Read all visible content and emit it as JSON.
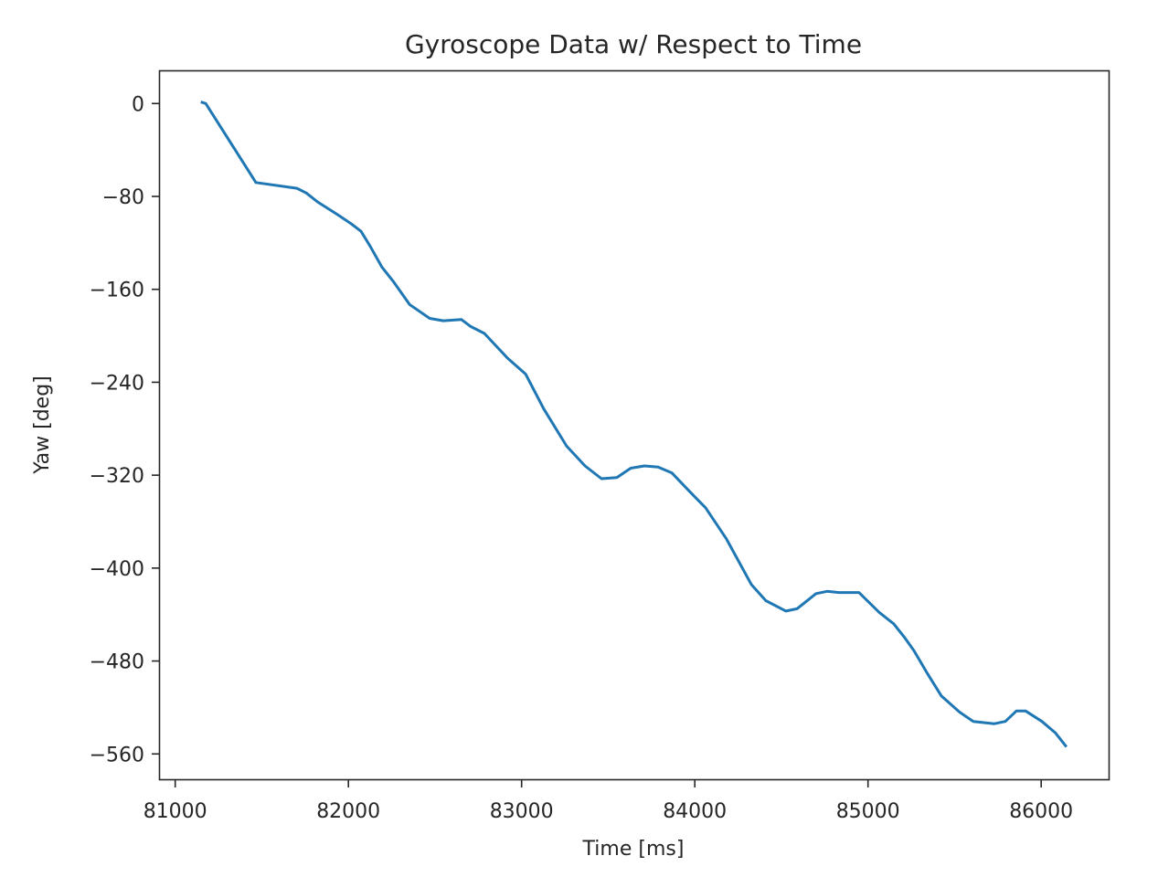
{
  "chart_data": {
    "type": "line",
    "title": "Gyroscope Data w/ Respect to Time",
    "xlabel": "Time [ms]",
    "ylabel": "Yaw [deg]",
    "xlim": [
      80950,
      86390
    ],
    "ylim": [
      -591,
      28
    ],
    "xticks": [
      81000,
      82000,
      83000,
      84000,
      85000,
      86000
    ],
    "yticks": [
      0,
      -80,
      -160,
      -240,
      -320,
      -400,
      -480,
      -560
    ],
    "ytick_labels": [
      "0",
      "−80",
      "−160",
      "−240",
      "−320",
      "−400",
      "−480",
      "−560"
    ],
    "grid": false,
    "legend": null,
    "series": [
      {
        "name": "Yaw",
        "color": "#1f77b4",
        "x": [
          81155,
          81176,
          81466,
          81703,
          81756,
          81825,
          81941,
          82020,
          82073,
          82126,
          82194,
          82258,
          82353,
          82469,
          82548,
          82653,
          82706,
          82785,
          82917,
          83023,
          83128,
          83260,
          83366,
          83461,
          83550,
          83630,
          83709,
          83788,
          83867,
          83957,
          84009,
          84062,
          84183,
          84326,
          84410,
          84526,
          84590,
          84700,
          84764,
          84832,
          84948,
          85064,
          85149,
          85212,
          85265,
          85344,
          85423,
          85529,
          85608,
          85730,
          85793,
          85857,
          85909,
          86004,
          86083,
          86141
        ],
        "y": [
          1,
          0,
          -68,
          -73,
          -77,
          -85,
          -96,
          -104,
          -110,
          -123,
          -141,
          -153,
          -173,
          -185,
          -187,
          -186,
          -192,
          -198,
          -219,
          -233,
          -263,
          -295,
          -312,
          -323,
          -322,
          -314,
          -312,
          -313,
          -318,
          -332,
          -340,
          -348,
          -375,
          -414,
          -428,
          -437,
          -435,
          -422,
          -420,
          -421,
          -421,
          -438,
          -448,
          -460,
          -471,
          -491,
          -510,
          -524,
          -532,
          -534,
          -532,
          -523,
          -523,
          -532,
          -542,
          -553
        ]
      }
    ]
  }
}
